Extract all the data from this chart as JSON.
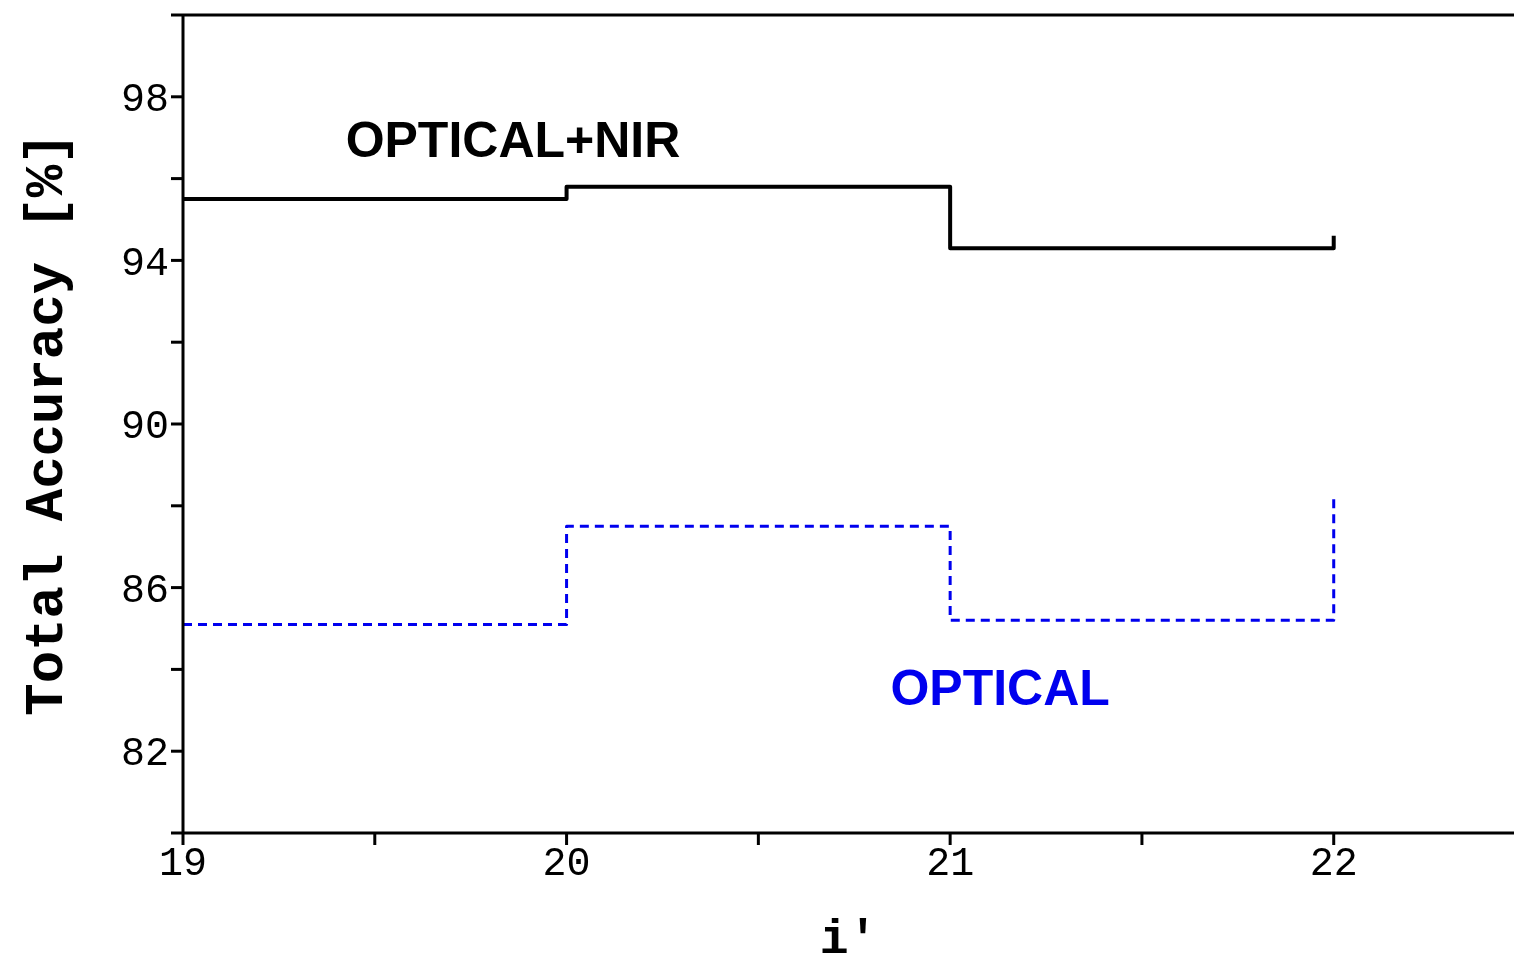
{
  "chart_data": {
    "type": "step",
    "xlabel": "i'",
    "ylabel": "Total Accuracy [%]",
    "x": [
      19,
      20,
      21,
      22
    ],
    "series": [
      {
        "name": "OPTICAL+NIR",
        "color": "#000000",
        "values": [
          95.5,
          95.8,
          94.3,
          94.6
        ],
        "line_style": "solid"
      },
      {
        "name": "OPTICAL",
        "color": "#0000ee",
        "values": [
          85.1,
          87.5,
          85.2,
          88.2
        ],
        "line_style": "dashed"
      }
    ],
    "xlim": [
      19,
      22.47
    ],
    "xticks": [
      19,
      {
        "value": 19.5,
        "label": null
      },
      20,
      {
        "value": 20.5,
        "label": null
      },
      21,
      {
        "value": 21.5,
        "label": null
      },
      22
    ],
    "ylim": [
      80,
      100
    ],
    "yticks": [
      {
        "value": 80,
        "label": null
      },
      82,
      {
        "value": 84,
        "label": null
      },
      86,
      {
        "value": 88,
        "label": null
      },
      90,
      {
        "value": 92,
        "label": null
      },
      94,
      {
        "value": 96,
        "label": null
      },
      98,
      {
        "value": 100,
        "label": null
      }
    ],
    "marker": "none"
  }
}
